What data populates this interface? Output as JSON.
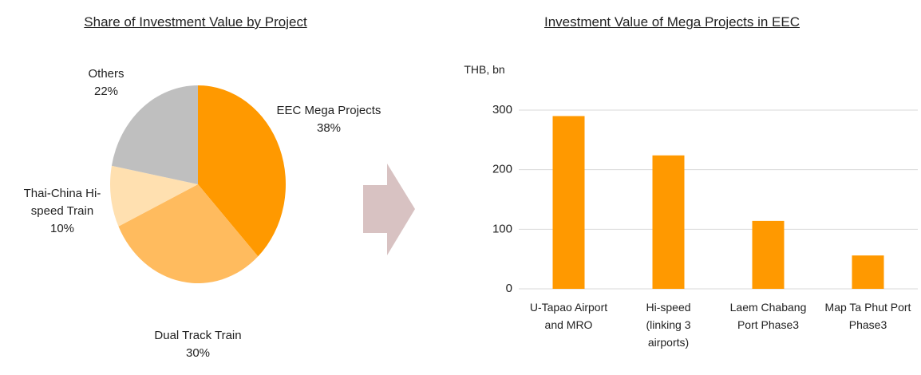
{
  "chart_data": [
    {
      "type": "pie",
      "title": "Share of Investment Value by Project",
      "categories": [
        "EEC Mega Projects",
        "Dual Track Train",
        "Thai-China Hi-speed Train",
        "Others"
      ],
      "values": [
        38,
        30,
        10,
        22
      ],
      "value_labels": [
        "38%",
        "30%",
        "10%",
        "22%"
      ],
      "colors": [
        "#ff9900",
        "#ffbb5e",
        "#ffe0b0",
        "#bfbfbf"
      ]
    },
    {
      "type": "bar",
      "title": "Investment Value of Mega Projects in EEC",
      "ylabel": "THB, bn",
      "categories": [
        "U-Tapao Airport and MRO",
        "Hi-speed (linking 3 airports)",
        "Laem Chabang Port Phase3",
        "Map Ta Phut Port Phase3"
      ],
      "values": [
        290,
        224,
        114,
        56
      ],
      "color": "#ff9900",
      "ylim": [
        0,
        300
      ],
      "yticks": [
        0,
        100,
        200,
        300
      ],
      "grid": true
    }
  ]
}
